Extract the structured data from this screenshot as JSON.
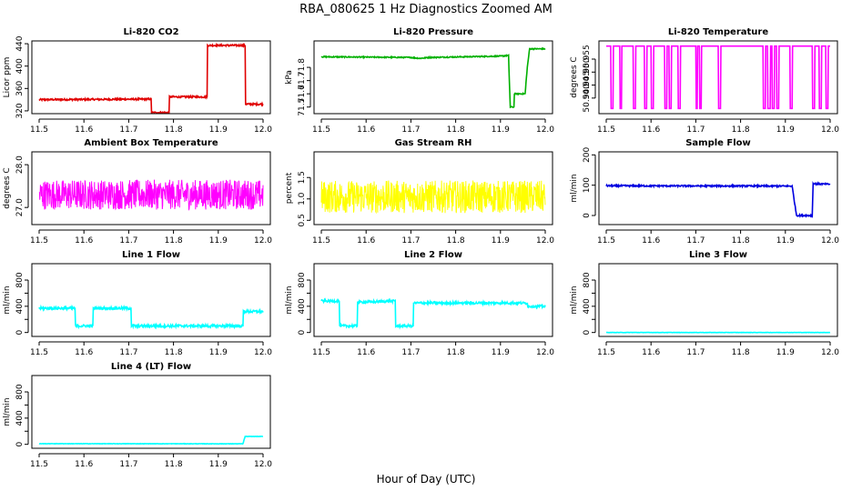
{
  "figure": {
    "title": "RBA_080625  1 Hz Diagnostics Zoomed AM",
    "xlabel": "Hour of Day (UTC)"
  },
  "chart_data": [
    {
      "id": "co2",
      "type": "line",
      "title": "Li-820 CO2",
      "ylabel": "Licor ppm",
      "color": "#e00000",
      "xlim": [
        11.5,
        12.0
      ],
      "ylim": [
        315,
        445
      ],
      "xticks": [
        11.5,
        11.6,
        11.7,
        11.8,
        11.9,
        12.0
      ],
      "xtick_labels": [
        "11.5",
        "11.6",
        "11.7",
        "11.8",
        "11.9",
        "12.0"
      ],
      "yticks": [
        320,
        360,
        400,
        440
      ],
      "ytick_labels": [
        "320",
        "360",
        "400",
        "440"
      ],
      "noise": 1.5,
      "series": [
        {
          "x": [
            11.5,
            11.75,
            11.751,
            11.79,
            11.791,
            11.875,
            11.876,
            11.96,
            11.961,
            12.0
          ],
          "y": [
            340,
            341,
            317,
            317,
            345,
            345,
            437,
            437,
            332,
            332
          ]
        }
      ]
    },
    {
      "id": "pressure",
      "type": "line",
      "title": "Li-820 Pressure",
      "ylabel": "kPa",
      "color": "#00b000",
      "xlim": [
        11.5,
        12.0
      ],
      "ylim": [
        71.45,
        72.0
      ],
      "xticks": [
        11.5,
        11.6,
        11.7,
        11.8,
        11.9,
        12.0
      ],
      "xtick_labels": [
        "11.5",
        "11.6",
        "11.7",
        "11.8",
        "11.9",
        "12.0"
      ],
      "yticks": [
        71.5,
        71.6,
        71.7,
        71.8
      ],
      "ytick_labels": [
        "71.5",
        "71.6",
        "71.7",
        "71.8"
      ],
      "noise": 0.004,
      "series": [
        {
          "x": [
            11.5,
            11.7,
            11.72,
            11.74,
            11.9,
            11.918,
            11.922,
            11.93,
            11.931,
            11.955,
            11.96,
            11.965,
            11.97,
            12.0
          ],
          "y": [
            71.88,
            71.875,
            71.868,
            71.875,
            71.885,
            71.89,
            71.5,
            71.5,
            71.6,
            71.6,
            71.8,
            71.94,
            71.94,
            71.94
          ]
        }
      ]
    },
    {
      "id": "licor-temp",
      "type": "line",
      "title": "Li-820 Temperature",
      "ylabel": "degrees C",
      "color": "#ff00ff",
      "xlim": [
        11.5,
        12.0
      ],
      "ylim": [
        50.934,
        50.962
      ],
      "xticks": [
        11.5,
        11.6,
        11.7,
        11.8,
        11.9,
        12.0
      ],
      "xtick_labels": [
        "11.5",
        "11.6",
        "11.7",
        "11.8",
        "11.9",
        "12.0"
      ],
      "yticks": [
        50.94,
        50.945,
        50.95,
        50.955
      ],
      "ytick_labels": [
        "50.940",
        "50.945",
        "50.950",
        "50.955"
      ],
      "noise": 0,
      "series": [
        {
          "x": [
            11.5,
            11.51,
            11.511,
            11.515,
            11.516,
            11.53,
            11.531,
            11.534,
            11.535,
            11.56,
            11.561,
            11.565,
            11.566,
            11.585,
            11.586,
            11.59,
            11.591,
            11.6,
            11.601,
            11.605,
            11.606,
            11.63,
            11.631,
            11.635,
            11.636,
            11.64,
            11.641,
            11.645,
            11.646,
            11.66,
            11.661,
            11.665,
            11.666,
            11.7,
            11.701,
            11.703,
            11.704,
            11.708,
            11.709,
            11.712,
            11.713,
            11.75,
            11.751,
            11.755,
            11.756,
            11.85,
            11.851,
            11.855,
            11.856,
            11.86,
            11.861,
            11.866,
            11.867,
            11.87,
            11.871,
            11.875,
            11.876,
            11.88,
            11.881,
            11.885,
            11.886,
            11.91,
            11.911,
            11.915,
            11.916,
            11.96,
            11.961,
            11.965,
            11.966,
            11.975,
            11.976,
            11.98,
            11.981,
            11.99,
            11.991,
            11.995,
            11.996,
            12.0
          ],
          "y": [
            50.96,
            50.96,
            50.936,
            50.936,
            50.96,
            50.96,
            50.936,
            50.936,
            50.96,
            50.96,
            50.936,
            50.936,
            50.96,
            50.96,
            50.936,
            50.936,
            50.96,
            50.96,
            50.936,
            50.936,
            50.96,
            50.96,
            50.936,
            50.936,
            50.96,
            50.96,
            50.936,
            50.936,
            50.96,
            50.96,
            50.936,
            50.936,
            50.96,
            50.96,
            50.936,
            50.936,
            50.96,
            50.96,
            50.936,
            50.936,
            50.96,
            50.96,
            50.936,
            50.936,
            50.96,
            50.96,
            50.936,
            50.936,
            50.96,
            50.96,
            50.936,
            50.936,
            50.96,
            50.96,
            50.936,
            50.936,
            50.96,
            50.96,
            50.936,
            50.936,
            50.96,
            50.96,
            50.936,
            50.936,
            50.96,
            50.96,
            50.936,
            50.936,
            50.96,
            50.96,
            50.936,
            50.936,
            50.96,
            50.96,
            50.936,
            50.936,
            50.96,
            50.96
          ]
        }
      ]
    },
    {
      "id": "ambient-box-temp",
      "type": "line",
      "title": "Ambient Box Temperature",
      "ylabel": "degrees C",
      "color": "#ff00ff",
      "xlim": [
        11.5,
        12.0
      ],
      "ylim": [
        26.6,
        28.3
      ],
      "xticks": [
        11.5,
        11.6,
        11.7,
        11.8,
        11.9,
        12.0
      ],
      "xtick_labels": [
        "11.5",
        "11.6",
        "11.7",
        "11.8",
        "11.9",
        "12.0"
      ],
      "yticks": [
        27.0,
        28.0
      ],
      "ytick_labels": [
        "27.0",
        "28.0"
      ],
      "noise": 0.35,
      "series": [
        {
          "x": [
            11.5,
            12.0
          ],
          "y": [
            27.3,
            27.3
          ]
        }
      ]
    },
    {
      "id": "gas-stream-rh",
      "type": "line",
      "title": "Gas Stream RH",
      "ylabel": "percent",
      "color": "#ffff00",
      "xlim": [
        11.5,
        12.0
      ],
      "ylim": [
        0.4,
        2.1
      ],
      "xticks": [
        11.5,
        11.6,
        11.7,
        11.8,
        11.9,
        12.0
      ],
      "xtick_labels": [
        "11.5",
        "11.6",
        "11.7",
        "11.8",
        "11.9",
        "12.0"
      ],
      "yticks": [
        0.5,
        1.0,
        1.5
      ],
      "ytick_labels": [
        "0.5",
        "1.0",
        "1.5"
      ],
      "noise": 0.38,
      "series": [
        {
          "x": [
            11.5,
            12.0
          ],
          "y": [
            1.05,
            1.05
          ]
        }
      ]
    },
    {
      "id": "sample-flow",
      "type": "line",
      "title": "Sample Flow",
      "ylabel": "ml/min",
      "color": "#0000e0",
      "xlim": [
        11.5,
        12.0
      ],
      "ylim": [
        -30,
        210
      ],
      "xticks": [
        11.5,
        11.6,
        11.7,
        11.8,
        11.9,
        12.0
      ],
      "xtick_labels": [
        "11.5",
        "11.6",
        "11.7",
        "11.8",
        "11.9",
        "12.0"
      ],
      "yticks": [
        0,
        100,
        200
      ],
      "ytick_labels": [
        "0",
        "100",
        "200"
      ],
      "noise": 2.5,
      "series": [
        {
          "x": [
            11.5,
            11.915,
            11.925,
            11.955,
            11.96,
            11.962,
            12.0
          ],
          "y": [
            98,
            97,
            0,
            0,
            0,
            105,
            103
          ]
        }
      ]
    },
    {
      "id": "line1-flow",
      "type": "line",
      "title": "Line 1 Flow",
      "ylabel": "ml/min",
      "color": "#00ffff",
      "xlim": [
        11.5,
        12.0
      ],
      "ylim": [
        -60,
        1050
      ],
      "xticks": [
        11.5,
        11.6,
        11.7,
        11.8,
        11.9,
        12.0
      ],
      "xtick_labels": [
        "11.5",
        "11.6",
        "11.7",
        "11.8",
        "11.9",
        "12.0"
      ],
      "yticks": [
        0,
        200,
        400,
        600,
        800
      ],
      "ytick_labels": [
        "0",
        "400",
        "800"
      ],
      "noise": 20,
      "series": [
        {
          "x": [
            11.5,
            11.58,
            11.581,
            11.62,
            11.621,
            11.705,
            11.706,
            11.955,
            11.956,
            12.0
          ],
          "y": [
            370,
            370,
            100,
            100,
            370,
            370,
            100,
            100,
            320,
            320
          ]
        }
      ]
    },
    {
      "id": "line2-flow",
      "type": "line",
      "title": "Line 2 Flow",
      "ylabel": "ml/min",
      "color": "#00ffff",
      "xlim": [
        11.5,
        12.0
      ],
      "ylim": [
        -60,
        1050
      ],
      "xticks": [
        11.5,
        11.6,
        11.7,
        11.8,
        11.9,
        12.0
      ],
      "xtick_labels": [
        "11.5",
        "11.6",
        "11.7",
        "11.8",
        "11.9",
        "12.0"
      ],
      "yticks": [
        0,
        200,
        400,
        600,
        800
      ],
      "ytick_labels": [
        "0",
        "400",
        "800"
      ],
      "noise": 18,
      "series": [
        {
          "x": [
            11.5,
            11.54,
            11.541,
            11.58,
            11.581,
            11.665,
            11.666,
            11.705,
            11.706,
            11.96,
            11.961,
            12.0
          ],
          "y": [
            480,
            480,
            100,
            100,
            460,
            480,
            100,
            100,
            450,
            450,
            400,
            400
          ]
        }
      ]
    },
    {
      "id": "line3-flow",
      "type": "line",
      "title": "Line 3 Flow",
      "ylabel": "ml/min",
      "color": "#00ffff",
      "xlim": [
        11.5,
        12.0
      ],
      "ylim": [
        -60,
        1050
      ],
      "xticks": [
        11.5,
        11.6,
        11.7,
        11.8,
        11.9,
        12.0
      ],
      "xtick_labels": [
        "11.5",
        "11.6",
        "11.7",
        "11.8",
        "11.9",
        "12.0"
      ],
      "yticks": [
        0,
        200,
        400,
        600,
        800
      ],
      "ytick_labels": [
        "0",
        "400",
        "800"
      ],
      "noise": 2,
      "series": [
        {
          "x": [
            11.5,
            12.0
          ],
          "y": [
            0,
            0
          ]
        }
      ]
    },
    {
      "id": "line4-flow",
      "type": "line",
      "title": "Line 4 (LT) Flow",
      "ylabel": "ml/min",
      "color": "#00ffff",
      "xlim": [
        11.5,
        12.0
      ],
      "ylim": [
        -60,
        1050
      ],
      "xticks": [
        11.5,
        11.6,
        11.7,
        11.8,
        11.9,
        12.0
      ],
      "xtick_labels": [
        "11.5",
        "11.6",
        "11.7",
        "11.8",
        "11.9",
        "12.0"
      ],
      "yticks": [
        0,
        200,
        400,
        600,
        800
      ],
      "ytick_labels": [
        "0",
        "400",
        "800"
      ],
      "noise": 3,
      "series": [
        {
          "x": [
            11.5,
            11.955,
            11.96,
            12.0
          ],
          "y": [
            10,
            8,
            120,
            120
          ]
        }
      ]
    }
  ]
}
